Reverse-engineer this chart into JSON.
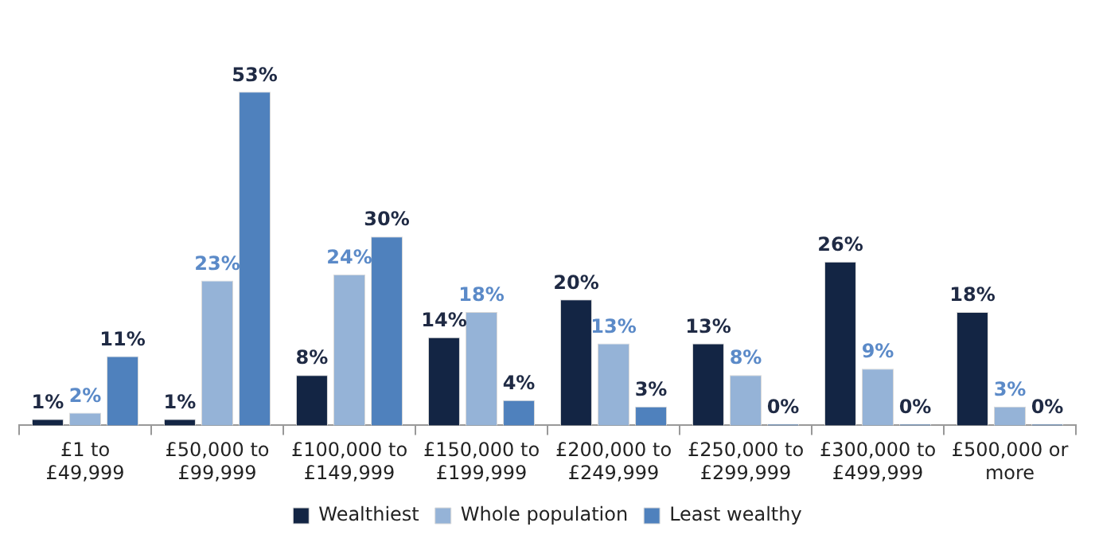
{
  "chart_data": {
    "type": "bar",
    "categories": [
      "£1 to £49,999",
      "£50,000 to £99,999",
      "£100,000 to £149,999",
      "£150,000 to £199,999",
      "£200,000 to £249,999",
      "£250,000 to £299,999",
      "£300,000 to £499,999",
      "£500,000 or more"
    ],
    "series": [
      {
        "name": "Wealthiest",
        "color": "#132544",
        "values": [
          1,
          1,
          8,
          14,
          20,
          13,
          26,
          18
        ],
        "value_labels": [
          "1%",
          "1%",
          "8%",
          "14%",
          "20%",
          "13%",
          "26%",
          "18%"
        ]
      },
      {
        "name": "Whole population",
        "color": "#95b3d7",
        "values": [
          2,
          23,
          24,
          18,
          13,
          8,
          9,
          3
        ],
        "value_labels": [
          "2%",
          "23%",
          "24%",
          "18%",
          "13%",
          "8%",
          "9%",
          "3%"
        ]
      },
      {
        "name": "Least wealthy",
        "color": "#4f81bd",
        "values": [
          11,
          53,
          30,
          4,
          3,
          0,
          0,
          0
        ],
        "value_labels": [
          "11%",
          "53%",
          "30%",
          "4%",
          "3%",
          "0%",
          "0%",
          "0%"
        ]
      }
    ],
    "legend": "bottom",
    "grid": false
  }
}
